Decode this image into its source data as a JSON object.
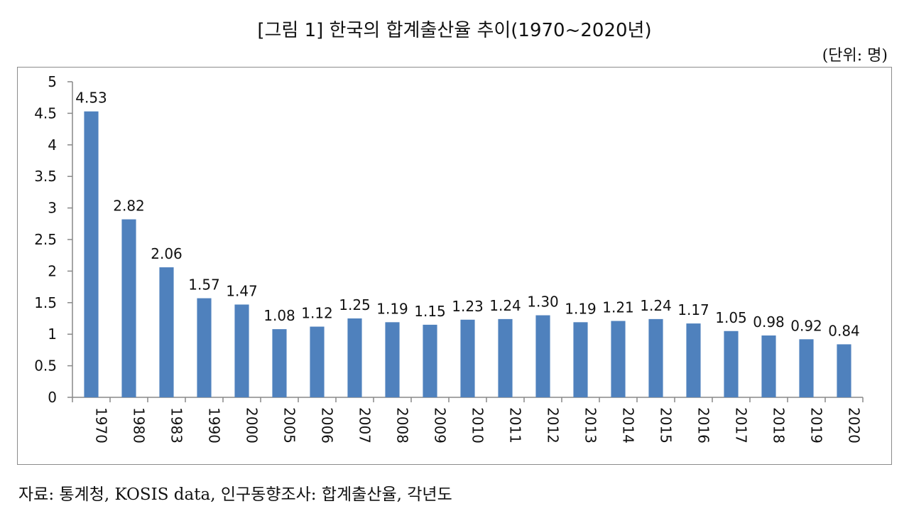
{
  "page": {
    "title": "[그림 1] 한국의 합계출산율 추이(1970~2020년)",
    "unit": "(단위: 명)",
    "source": "자료: 통계청, KOSIS data, 인구동향조사: 합계출산율, 각년도"
  },
  "chart_data": {
    "type": "bar",
    "title": "[그림 1] 한국의 합계출산율 추이(1970~2020년)",
    "xlabel": "",
    "ylabel": "",
    "ylim": [
      0,
      5
    ],
    "yticks": [
      "0",
      "0.5",
      "1",
      "1.5",
      "2",
      "2.5",
      "3",
      "3.5",
      "4",
      "4.5",
      "5"
    ],
    "ytick_values": [
      0,
      0.5,
      1,
      1.5,
      2,
      2.5,
      3,
      3.5,
      4,
      4.5,
      5
    ],
    "categories": [
      "1970",
      "1980",
      "1983",
      "1990",
      "2000",
      "2005",
      "2006",
      "2007",
      "2008",
      "2009",
      "2010",
      "2011",
      "2012",
      "2013",
      "2014",
      "2015",
      "2016",
      "2017",
      "2018",
      "2019",
      "2020"
    ],
    "values": [
      4.53,
      2.82,
      2.06,
      1.57,
      1.47,
      1.08,
      1.12,
      1.25,
      1.19,
      1.15,
      1.23,
      1.24,
      1.3,
      1.19,
      1.21,
      1.24,
      1.17,
      1.05,
      0.98,
      0.92,
      0.84
    ],
    "value_labels": [
      "4.53",
      "2.82",
      "2.06",
      "1.57",
      "1.47",
      "1.08",
      "1.12",
      "1.25",
      "1.19",
      "1.15",
      "1.23",
      "1.24",
      "1.30",
      "1.19",
      "1.21",
      "1.24",
      "1.17",
      "1.05",
      "0.98",
      "0.92",
      "0.84"
    ],
    "bar_color": "#4f81bd",
    "grid": false,
    "legend": "none"
  }
}
